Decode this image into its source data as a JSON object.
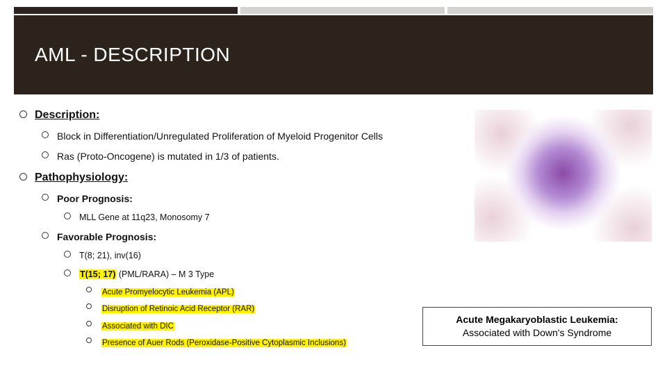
{
  "colors": {
    "header_dark": "#2c241c",
    "header_light": "#d6d2ce",
    "highlight": "#fff200",
    "text": "#111111",
    "background": "#ffffff",
    "callout_border": "#444444"
  },
  "title": "AML - DESCRIPTION",
  "sections": {
    "description": {
      "heading": "Description:",
      "items": [
        "Block in Differentiation/Unregulated Proliferation of Myeloid Progenitor Cells",
        "Ras (Proto-Oncogene) is mutated in 1/3 of patients."
      ]
    },
    "patho": {
      "heading": "Pathophysiology:",
      "poor": {
        "label": "Poor Prognosis:",
        "items": [
          "MLL Gene at 11q23, Monosomy 7"
        ]
      },
      "favorable": {
        "label": "Favorable Prognosis:",
        "line1": "T(8; 21), inv(16)",
        "line2_hl": "T(15; 17)",
        "line2_rest": " (PML/RARA) – M 3 Type",
        "sub": [
          "Acute Promyelocytic Leukemia (APL)",
          "Disruption of Retinoic Acid Receptor (RAR)",
          "Associated with DIC",
          "Presence of Auer Rods (Peroxidase-Positive Cytoplasmic Inclusions)"
        ]
      }
    }
  },
  "callout": {
    "line1": "Acute Megakaryoblastic Leukemia:",
    "line2": "Associated with Down's Syndrome"
  }
}
